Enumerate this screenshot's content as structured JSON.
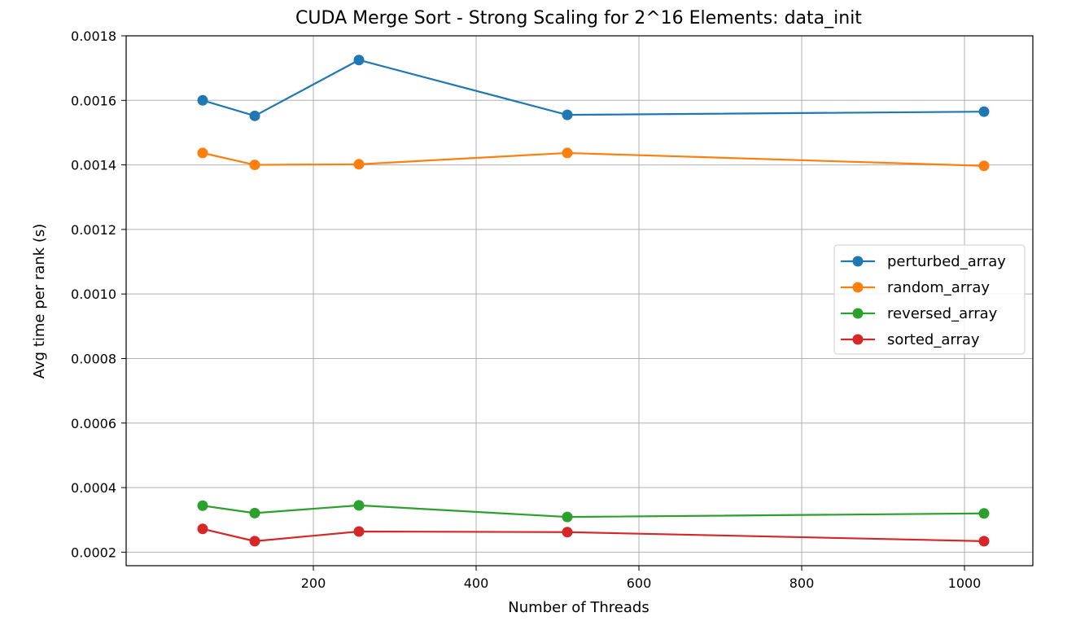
{
  "chart_data": {
    "type": "line",
    "title": "CUDA Merge Sort - Strong Scaling for 2^16 Elements: data_init",
    "xlabel": "Number of Threads",
    "ylabel": "Avg time per rank (s)",
    "xlim": [
      -30,
      1084
    ],
    "ylim": [
      0.000158,
      0.0018
    ],
    "grid": true,
    "legend_position": "center-right",
    "x": [
      64,
      128,
      256,
      512,
      1024
    ],
    "xticks": [
      200,
      400,
      600,
      800,
      1000
    ],
    "xtick_labels": [
      "200",
      "400",
      "600",
      "800",
      "1000"
    ],
    "yticks": [
      0.0002,
      0.0004,
      0.0006,
      0.0008,
      0.001,
      0.0012,
      0.0014,
      0.0016,
      0.0018
    ],
    "ytick_labels": [
      "0.0002",
      "0.0004",
      "0.0006",
      "0.0008",
      "0.0010",
      "0.0012",
      "0.0014",
      "0.0016",
      "0.0018"
    ],
    "series": [
      {
        "name": "perturbed_array",
        "color": "#1f77b4",
        "values": [
          0.0016,
          0.001552,
          0.001725,
          0.001555,
          0.001565
        ]
      },
      {
        "name": "random_array",
        "color": "#ff7f0e",
        "values": [
          0.001437,
          0.0014,
          0.001402,
          0.001437,
          0.001397
        ]
      },
      {
        "name": "reversed_array",
        "color": "#2ca02c",
        "values": [
          0.000344,
          0.000321,
          0.000345,
          0.000309,
          0.00032
        ]
      },
      {
        "name": "sorted_array",
        "color": "#d62728",
        "values": [
          0.000272,
          0.000234,
          0.000264,
          0.000262,
          0.000234
        ]
      }
    ]
  }
}
